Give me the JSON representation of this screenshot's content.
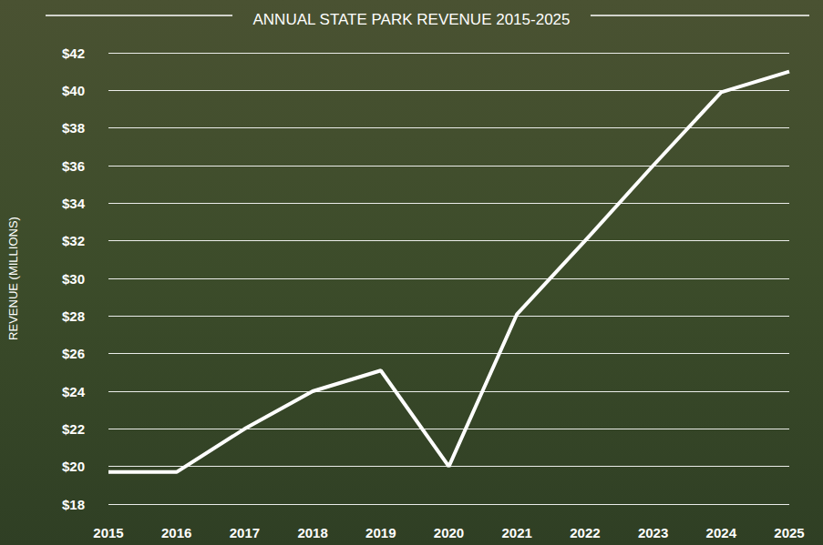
{
  "chart_data": {
    "type": "line",
    "title": "ANNUAL STATE PARK REVENUE 2015-2025",
    "y_label": "REVENUE (MILLIONS)",
    "categories": [
      "2015",
      "2016",
      "2017",
      "2018",
      "2019",
      "2020",
      "2021",
      "2022",
      "2023",
      "2024",
      "2025"
    ],
    "values": [
      19.7,
      19.7,
      22,
      24,
      25.1,
      20,
      28.1,
      32,
      36,
      39.9,
      41
    ],
    "color": "#ffffff",
    "ylim": [
      18,
      42
    ],
    "yticks": [
      {
        "value": 18,
        "label": "$18"
      },
      {
        "value": 20,
        "label": "$20"
      },
      {
        "value": 22,
        "label": "$22"
      },
      {
        "value": 24,
        "label": "$24"
      },
      {
        "value": 26,
        "label": "$26"
      },
      {
        "value": 28,
        "label": "$28"
      },
      {
        "value": 30,
        "label": "$30"
      },
      {
        "value": 32,
        "label": "$32"
      },
      {
        "value": 34,
        "label": "$34"
      },
      {
        "value": 36,
        "label": "$36"
      },
      {
        "value": 38,
        "label": "$38"
      },
      {
        "value": 40,
        "label": "$40"
      },
      {
        "value": 42,
        "label": "$42"
      }
    ],
    "grid": true
  }
}
